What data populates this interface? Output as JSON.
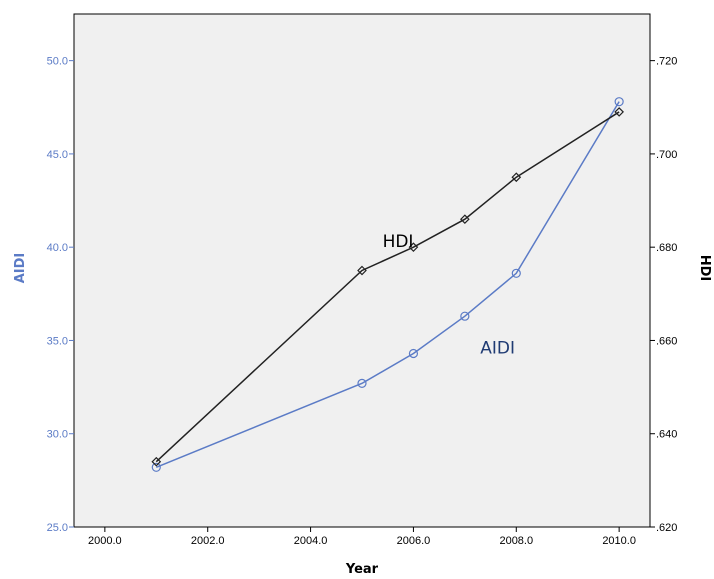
{
  "chart_data": {
    "type": "line",
    "xlabel": "Year",
    "ylabel_left": "AIDI",
    "ylabel_right": "HDI",
    "xlim": [
      1999.4,
      2010.6
    ],
    "ylim_left": [
      25.0,
      52.5
    ],
    "ylim_right": [
      0.62,
      0.73
    ],
    "x_ticks": [
      2000.0,
      2002.0,
      2004.0,
      2006.0,
      2008.0,
      2010.0
    ],
    "x_tick_labels": [
      "2000.0",
      "2002.0",
      "2004.0",
      "2006.0",
      "2008.0",
      "2010.0"
    ],
    "y_left_ticks": [
      25.0,
      30.0,
      35.0,
      40.0,
      45.0,
      50.0
    ],
    "y_left_tick_labels": [
      "25.0",
      "30.0",
      "35.0",
      "40.0",
      "45.0",
      "50.0"
    ],
    "y_right_ticks": [
      0.62,
      0.64,
      0.66,
      0.68,
      0.7,
      0.72
    ],
    "y_right_tick_labels": [
      ".620",
      ".640",
      ".660",
      ".680",
      ".700",
      ".720"
    ],
    "grid": false,
    "series": [
      {
        "name": "AIDI",
        "axis": "left",
        "color": "#5b7bc6",
        "marker": "circle",
        "x": [
          2001,
          2005,
          2006,
          2007,
          2008,
          2010
        ],
        "y": [
          28.2,
          32.7,
          34.3,
          36.3,
          38.6,
          47.8
        ]
      },
      {
        "name": "HDI",
        "axis": "right",
        "color": "#222222",
        "marker": "diamond",
        "x": [
          2001,
          2005,
          2006,
          2007,
          2008,
          2010
        ],
        "y": [
          0.634,
          0.675,
          0.68,
          0.686,
          0.695,
          0.709
        ]
      }
    ],
    "annotations": [
      {
        "text": "HDI",
        "x": 2005.4,
        "y_right": 0.68
      },
      {
        "text": "AIDI",
        "x": 2007.3,
        "y_left": 34.3
      }
    ],
    "colors": {
      "plot_background": "#f0f0f0",
      "left_axis": "#5b7bc6",
      "right_axis": "#222222",
      "annotation_aidi": "#1f3b73",
      "annotation_hdi": "#000000"
    }
  }
}
